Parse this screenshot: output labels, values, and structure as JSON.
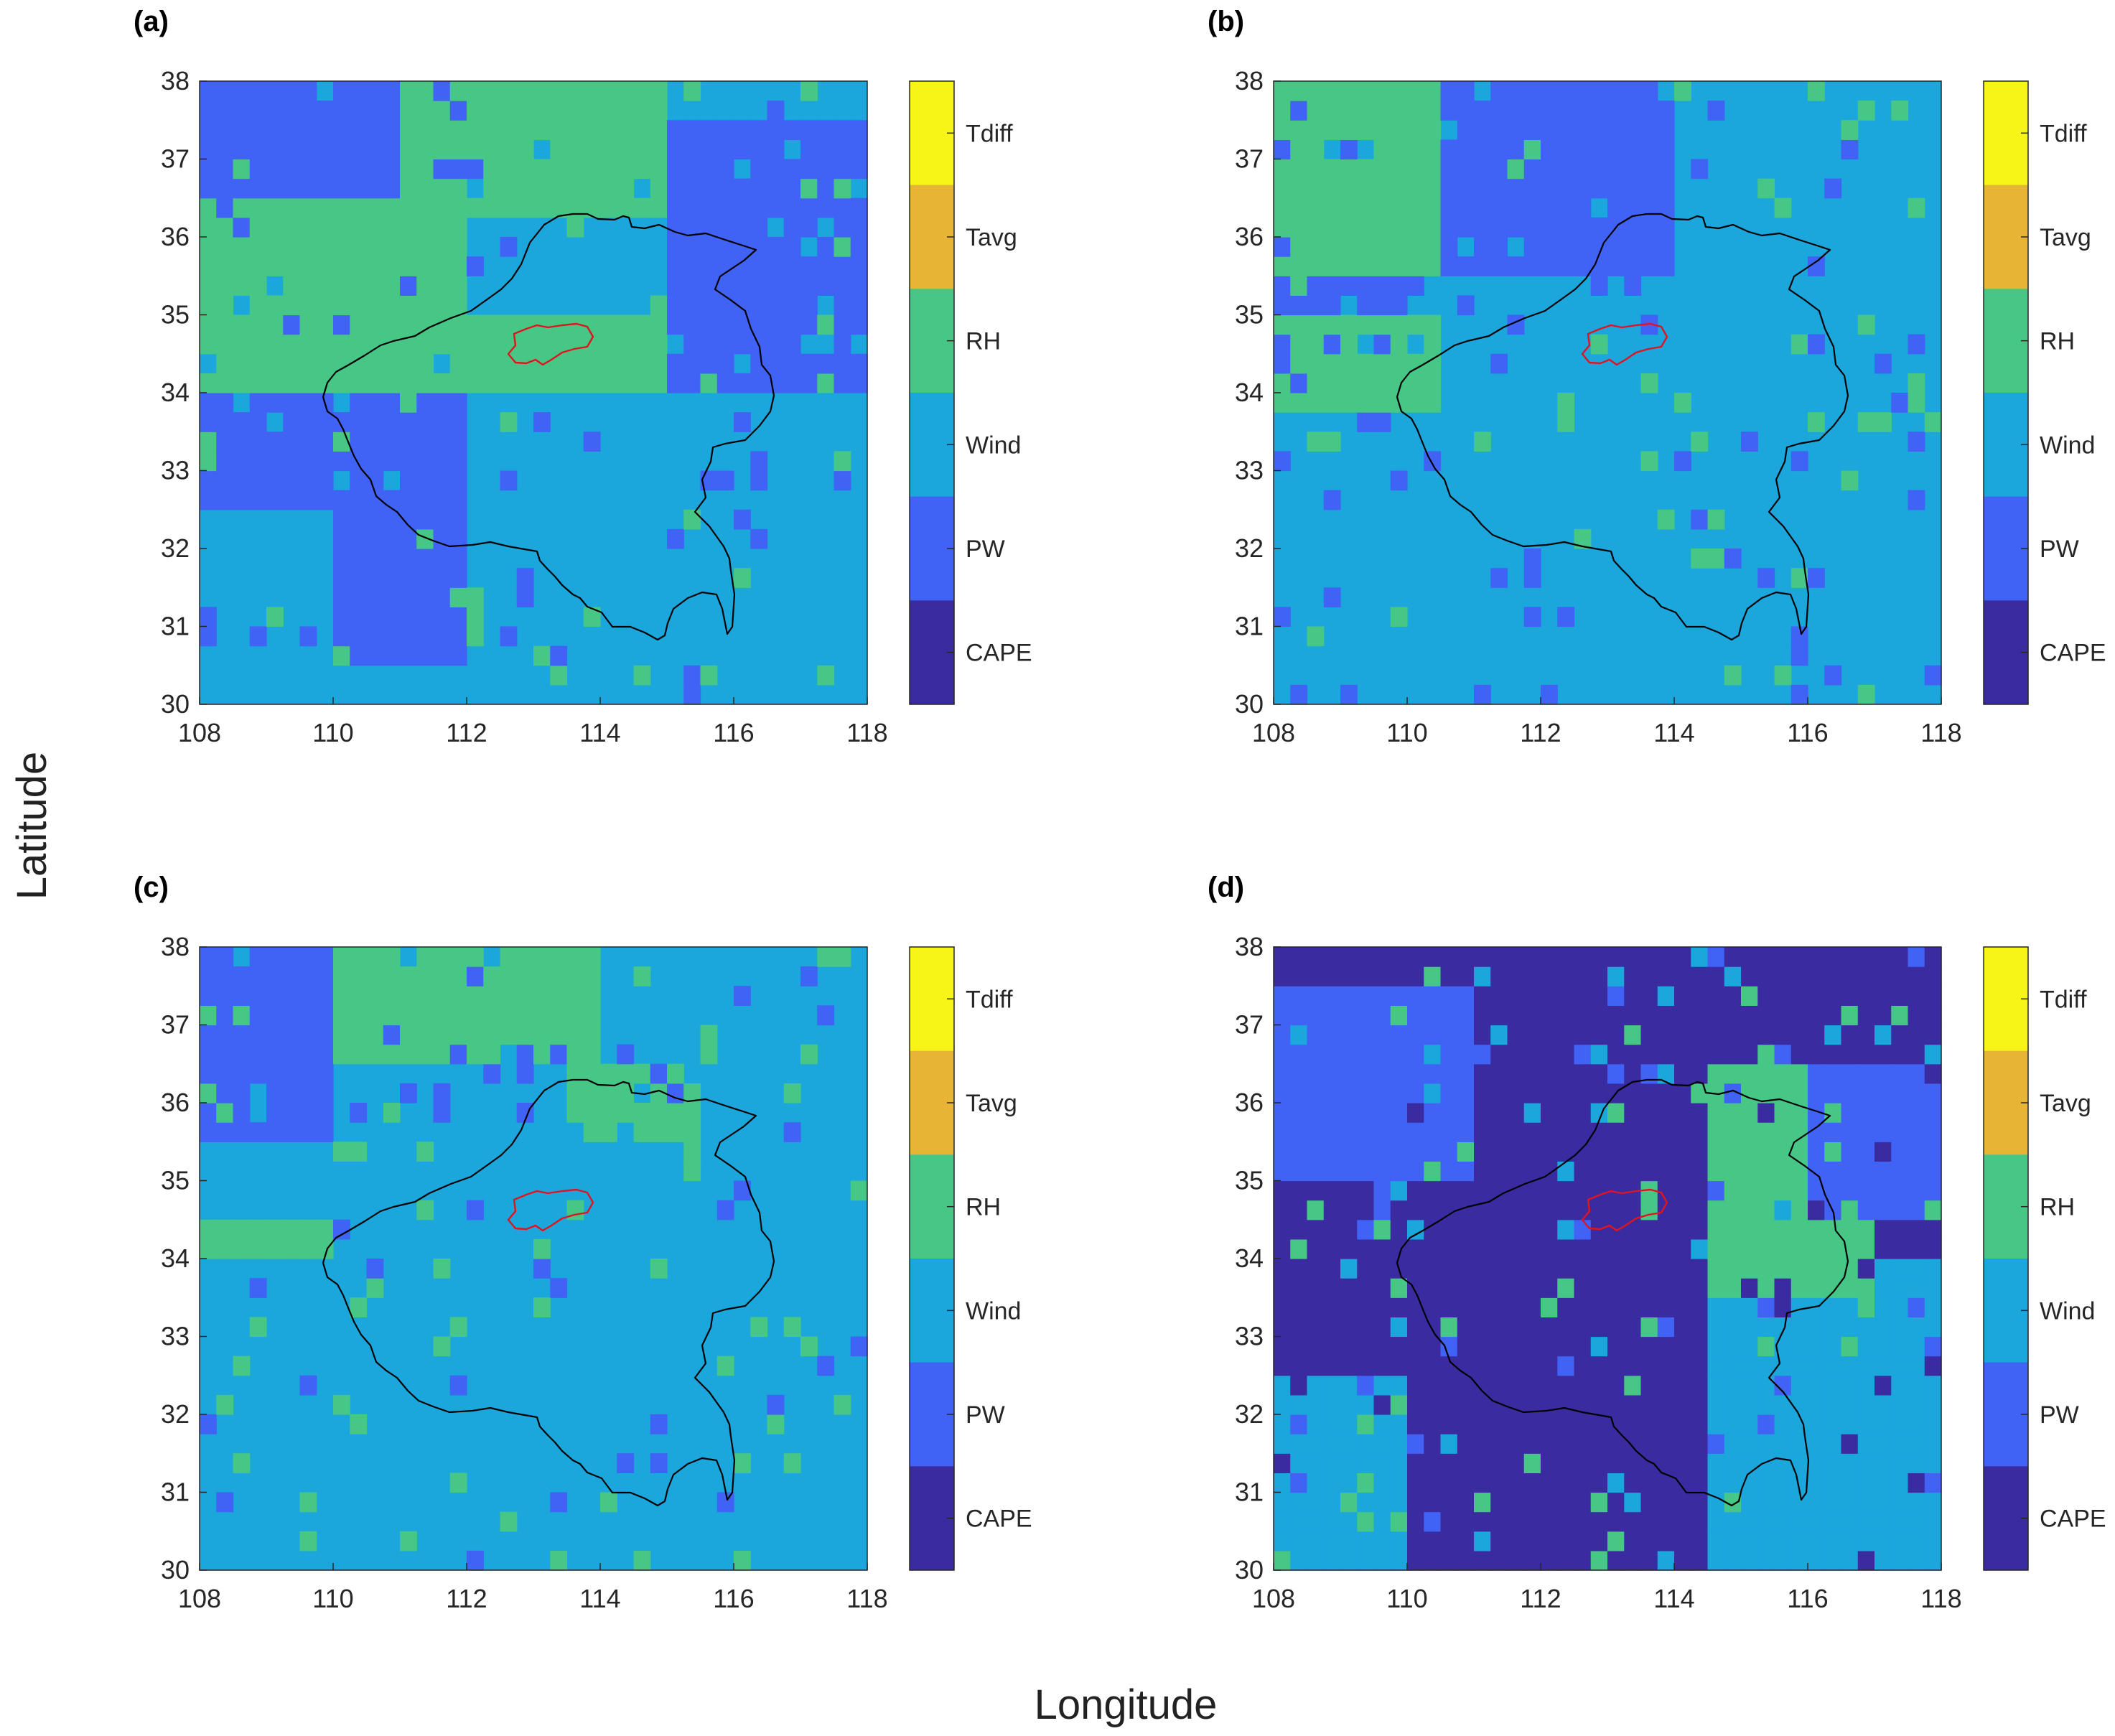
{
  "axes": {
    "xlabel": "Longitude",
    "ylabel": "Latitude"
  },
  "colors": {
    "CAPE": "#3b2ba0",
    "PW": "#4063f5",
    "Wind": "#1ba6dc",
    "RH": "#46c785",
    "Tavg": "#e8b435",
    "Tdiff": "#f7f518",
    "province_border": "#000000",
    "highlight_region": "#e0141e"
  },
  "colorbar": {
    "labels": [
      "Tdiff",
      "Tavg",
      "RH",
      "Wind",
      "PW",
      "CAPE"
    ]
  },
  "chart_data": [
    {
      "type": "heatmap",
      "label": "(a)",
      "x_ticks": [
        "108",
        "110",
        "112",
        "114",
        "116",
        "118"
      ],
      "y_ticks": [
        "38",
        "37",
        "36",
        "35",
        "34",
        "33",
        "32",
        "31",
        "30"
      ],
      "xlim": [
        108,
        118
      ],
      "ylim": [
        30,
        38
      ],
      "categories": [
        "CAPE",
        "PW",
        "Wind",
        "RH",
        "Tavg",
        "Tdiff"
      ],
      "grid_resolution_deg": 0.25,
      "dominant_factor_regions": [
        {
          "factor": "RH",
          "lon": [
            108,
            112
          ],
          "lat": [
            34,
            36.5
          ]
        },
        {
          "factor": "RH",
          "lon": [
            111,
            115
          ],
          "lat": [
            36.2,
            38
          ]
        },
        {
          "factor": "RH",
          "lon": [
            112,
            115.5
          ],
          "lat": [
            33.5,
            35
          ]
        },
        {
          "factor": "PW",
          "lon": [
            108,
            111
          ],
          "lat": [
            36.5,
            38
          ]
        },
        {
          "factor": "PW",
          "lon": [
            115,
            118
          ],
          "lat": [
            34,
            37.5
          ]
        },
        {
          "factor": "PW",
          "lon": [
            108,
            114
          ],
          "lat": [
            32.5,
            34
          ]
        },
        {
          "factor": "PW",
          "lon": [
            110,
            112
          ],
          "lat": [
            30.5,
            32.5
          ]
        },
        {
          "factor": "Wind",
          "lon": [
            108,
            110
          ],
          "lat": [
            30,
            32.5
          ]
        },
        {
          "factor": "Wind",
          "lon": [
            112,
            118
          ],
          "lat": [
            30,
            34
          ]
        }
      ]
    },
    {
      "type": "heatmap",
      "label": "(b)",
      "x_ticks": [
        "108",
        "110",
        "112",
        "114",
        "116",
        "118"
      ],
      "y_ticks": [
        "38",
        "37",
        "36",
        "35",
        "34",
        "33",
        "32",
        "31",
        "30"
      ],
      "xlim": [
        108,
        118
      ],
      "ylim": [
        30,
        38
      ],
      "categories": [
        "CAPE",
        "PW",
        "Wind",
        "RH",
        "Tavg",
        "Tdiff"
      ],
      "grid_resolution_deg": 0.25,
      "dominant_factor_regions": [
        {
          "factor": "Wind",
          "lon": [
            108,
            118
          ],
          "lat": [
            30,
            38
          ]
        },
        {
          "factor": "RH",
          "lon": [
            108,
            110.5
          ],
          "lat": [
            35.5,
            38
          ]
        },
        {
          "factor": "RH",
          "lon": [
            108,
            110.5
          ],
          "lat": [
            33.8,
            35
          ]
        },
        {
          "factor": "PW",
          "lon": [
            110.5,
            114
          ],
          "lat": [
            35.5,
            38
          ]
        },
        {
          "factor": "PW",
          "lon": [
            108,
            110
          ],
          "lat": [
            35,
            35.5
          ]
        }
      ]
    },
    {
      "type": "heatmap",
      "label": "(c)",
      "x_ticks": [
        "108",
        "110",
        "112",
        "114",
        "116",
        "118"
      ],
      "y_ticks": [
        "38",
        "37",
        "36",
        "35",
        "34",
        "33",
        "32",
        "31",
        "30"
      ],
      "xlim": [
        108,
        118
      ],
      "ylim": [
        30,
        38
      ],
      "categories": [
        "CAPE",
        "PW",
        "Wind",
        "RH",
        "Tavg",
        "Tdiff"
      ],
      "grid_resolution_deg": 0.25,
      "dominant_factor_regions": [
        {
          "factor": "Wind",
          "lon": [
            108,
            118
          ],
          "lat": [
            30,
            38
          ]
        },
        {
          "factor": "PW",
          "lon": [
            108,
            110
          ],
          "lat": [
            35.5,
            38
          ]
        },
        {
          "factor": "RH",
          "lon": [
            110,
            114
          ],
          "lat": [
            36.5,
            38
          ]
        },
        {
          "factor": "RH",
          "lon": [
            113.5,
            115.5
          ],
          "lat": [
            35.5,
            36.5
          ]
        },
        {
          "factor": "RH",
          "lon": [
            108,
            110
          ],
          "lat": [
            34,
            34.6
          ]
        }
      ]
    },
    {
      "type": "heatmap",
      "label": "(d)",
      "x_ticks": [
        "108",
        "110",
        "112",
        "114",
        "116",
        "118"
      ],
      "y_ticks": [
        "38",
        "37",
        "36",
        "35",
        "34",
        "33",
        "32",
        "31",
        "30"
      ],
      "xlim": [
        108,
        118
      ],
      "ylim": [
        30,
        38
      ],
      "categories": [
        "CAPE",
        "PW",
        "Wind",
        "RH",
        "Tavg",
        "Tdiff"
      ],
      "grid_resolution_deg": 0.25,
      "dominant_factor_regions": [
        {
          "factor": "CAPE",
          "lon": [
            108,
            114.5
          ],
          "lat": [
            30,
            38
          ]
        },
        {
          "factor": "CAPE",
          "lon": [
            114.5,
            118
          ],
          "lat": [
            37,
            38
          ]
        },
        {
          "factor": "Wind",
          "lon": [
            114.5,
            118
          ],
          "lat": [
            30,
            34
          ]
        },
        {
          "factor": "Wind",
          "lon": [
            108,
            110
          ],
          "lat": [
            30,
            32.5
          ]
        },
        {
          "factor": "RH",
          "lon": [
            114.5,
            117
          ],
          "lat": [
            33.5,
            36.5
          ]
        },
        {
          "factor": "PW",
          "lon": [
            116,
            118
          ],
          "lat": [
            34.5,
            36.5
          ]
        },
        {
          "factor": "PW",
          "lon": [
            108,
            111
          ],
          "lat": [
            35,
            37.5
          ]
        }
      ]
    }
  ]
}
